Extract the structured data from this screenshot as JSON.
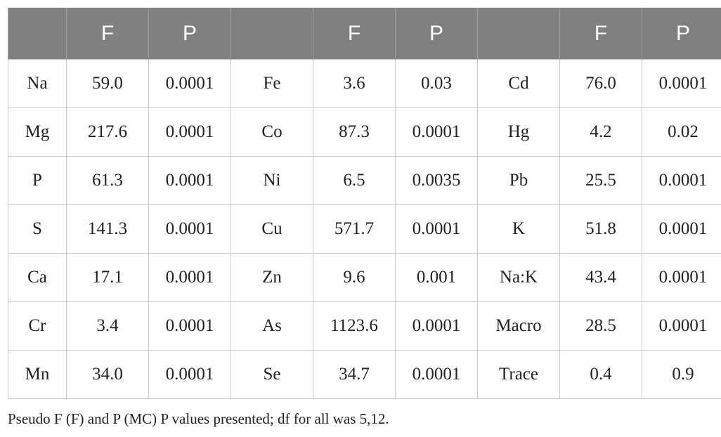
{
  "table": {
    "header": [
      "",
      "F",
      "P",
      "",
      "F",
      "P",
      "",
      "F",
      "P"
    ],
    "rows": [
      [
        "Na",
        "59.0",
        "0.0001",
        "Fe",
        "3.6",
        "0.03",
        "Cd",
        "76.0",
        "0.0001"
      ],
      [
        "Mg",
        "217.6",
        "0.0001",
        "Co",
        "87.3",
        "0.0001",
        "Hg",
        "4.2",
        "0.02"
      ],
      [
        "P",
        "61.3",
        "0.0001",
        "Ni",
        "6.5",
        "0.0035",
        "Pb",
        "25.5",
        "0.0001"
      ],
      [
        "S",
        "141.3",
        "0.0001",
        "Cu",
        "571.7",
        "0.0001",
        "K",
        "51.8",
        "0.0001"
      ],
      [
        "Ca",
        "17.1",
        "0.0001",
        "Zn",
        "9.6",
        "0.001",
        "Na:K",
        "43.4",
        "0.0001"
      ],
      [
        "Cr",
        "3.4",
        "0.0001",
        "As",
        "1123.6",
        "0.0001",
        "Macro",
        "28.5",
        "0.0001"
      ],
      [
        "Mn",
        "34.0",
        "0.0001",
        "Se",
        "34.7",
        "0.0001",
        "Trace",
        "0.4",
        "0.9"
      ]
    ]
  },
  "footnote": "Pseudo F (F) and P (MC) P values presented; df for all was 5,12."
}
